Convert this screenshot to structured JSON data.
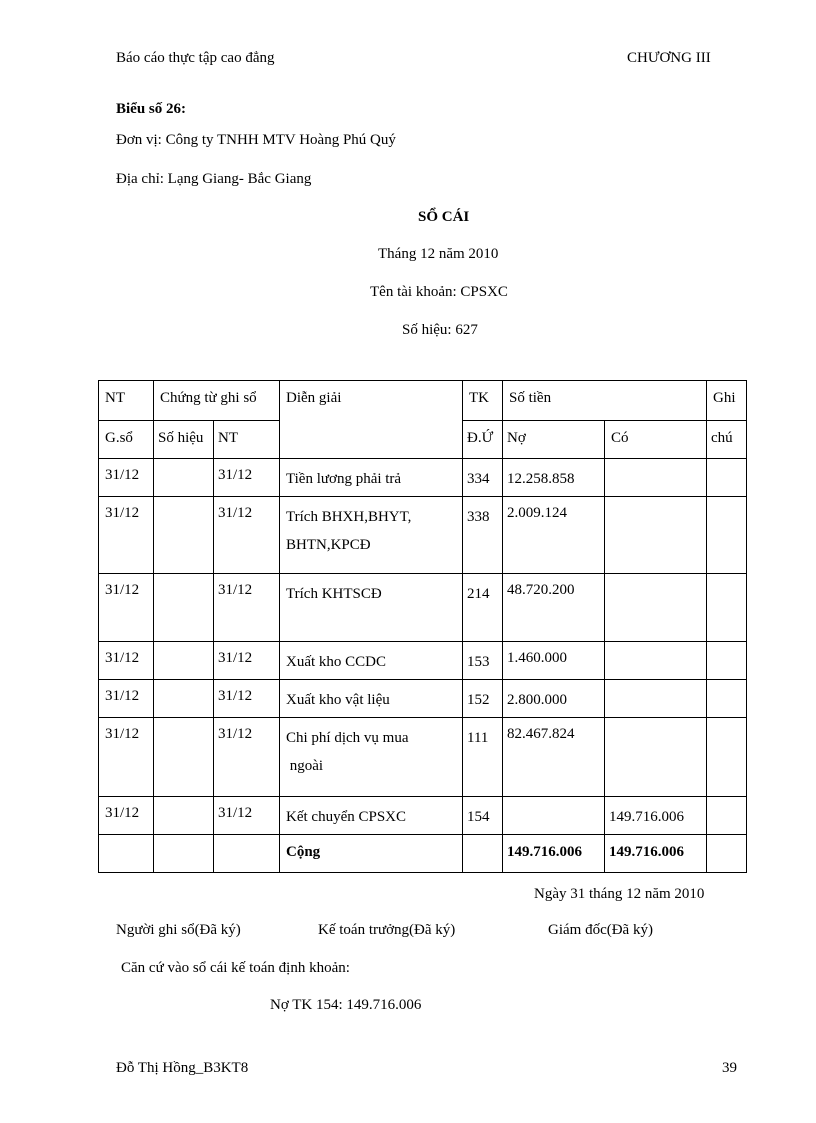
{
  "header": {
    "left": "Báo cáo thực tập cao đẳng",
    "right": "CHƯƠNG III"
  },
  "form_no": "Biểu số 26:",
  "unit": "Đơn vị: Công ty TNHH  MTV  Hoàng Phú Quý",
  "address": "Địa chỉ: Lạng Giang- Bắc Giang",
  "title": "SỔ CÁI",
  "month": "Tháng  12  năm 2010",
  "account_name": "Tên tài khoản: CPSXC",
  "account_no": "Số hiệu: 627",
  "table": {
    "h": {
      "nt": "NT",
      "gso": "G.sổ",
      "ctgs": "Chứng từ ghi sổ",
      "sohieu": "Số hiệu",
      "nt2": "NT",
      "dg": "Diễn giải",
      "tk": "TK",
      "du": "Đ.Ứ",
      "sotien": "Số tiền",
      "no": "Nợ",
      "co": "Có",
      "ghi": "Ghi",
      "chu": "chú"
    },
    "rows": [
      {
        "nt": "31/12",
        "sh": "",
        "nt2": "31/12",
        "dg": "Tiền lương phải trả",
        "dg2": "",
        "tk": "334",
        "no": "12.258.858",
        "co": ""
      },
      {
        "nt": "31/12",
        "sh": "",
        "nt2": "31/12",
        "dg": "Trích BHXH,BHYT,",
        "dg2": "BHTN,KPCĐ",
        "tk": "338",
        "no": "2.009.124",
        "co": ""
      },
      {
        "nt": "31/12",
        "sh": "",
        "nt2": "31/12",
        "dg": "Trích KHTSCĐ",
        "dg2": "",
        "tk": "214",
        "no": "48.720.200",
        "co": ""
      },
      {
        "nt": "31/12",
        "sh": "",
        "nt2": "31/12",
        "dg": "Xuất kho CCDC",
        "dg2": "",
        "tk": "153",
        "no": "1.460.000",
        "co": ""
      },
      {
        "nt": "31/12",
        "sh": "",
        "nt2": "31/12",
        "dg": "Xuất kho vật liệu",
        "dg2": "",
        "tk": "152",
        "no": "2.800.000",
        "co": ""
      },
      {
        "nt": "31/12",
        "sh": "",
        "nt2": "31/12",
        "dg": "Chi phí dịch vụ mua",
        "dg2": " ngoài",
        "tk": "111",
        "no": "82.467.824",
        "co": ""
      },
      {
        "nt": "31/12",
        "sh": "",
        "nt2": "31/12",
        "dg": "Kết chuyển CPSXC",
        "dg2": "",
        "tk": "154",
        "no": "",
        "co": "149.716.006"
      }
    ],
    "total": {
      "label": "Cộng",
      "no": "149.716.006",
      "co": "149.716.006"
    }
  },
  "date": "Ngày 31 tháng 12 năm 2010",
  "signers": [
    "Người ghi sổ(Đã ký)",
    "Kế toán trưởng(Đã ký)",
    "Giám đốc(Đã ký)"
  ],
  "note": "Căn cứ vào  sổ cái kế toán định khoản:",
  "entry": "Nợ TK 154: 149.716.006",
  "footer": {
    "left": "Đỗ Thị Hồng_B3KT8",
    "right": "39"
  }
}
